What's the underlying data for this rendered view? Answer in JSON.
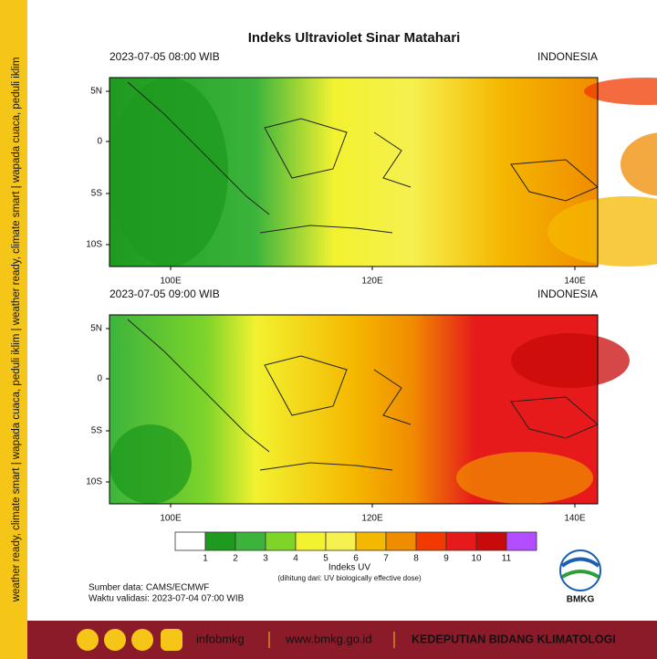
{
  "header": {
    "title": "Indeks Ultraviolet Sinar Matahari"
  },
  "panels": [
    {
      "datetime": "2023-07-05  08:00 WIB",
      "region": "INDONESIA",
      "lat_labels": [
        "5N",
        "0",
        "5S",
        "10S"
      ],
      "lon_labels": [
        "100E",
        "120E",
        "140E"
      ]
    },
    {
      "datetime": "2023-07-05  09:00 WIB",
      "region": "INDONESIA",
      "lat_labels": [
        "5N",
        "0",
        "5S",
        "10S"
      ],
      "lon_labels": [
        "100E",
        "120E",
        "140E"
      ]
    }
  ],
  "colorbar": {
    "labels": [
      "1",
      "2",
      "3",
      "4",
      "5",
      "6",
      "7",
      "8",
      "9",
      "10",
      "11"
    ],
    "colors": [
      "#ffffff",
      "#1e9a1e",
      "#3cb43c",
      "#7fd42a",
      "#f2f230",
      "#f6f050",
      "#f5b800",
      "#f08c00",
      "#f03a00",
      "#e61a1a",
      "#c80a0a",
      "#b44cff"
    ],
    "title": "Indeks UV",
    "note": "(dihitung dari: UV biologically effective dose)"
  },
  "source": "Sumber data: CAMS/ECMWF",
  "validity": "Waktu validasi: 2023-07-04 07:00 WIB",
  "sidebar": "weather ready, climate smart  |  wapada cuaca, peduli iklim  |  weather ready, climate smart  |  wapada cuaca, peduli iklim",
  "footer": {
    "handle": "infobmkg",
    "website": "www.bmkg.go.id",
    "department": "KEDEPUTIAN BIDANG KLIMATOLOGI"
  },
  "logo": "BMKG"
}
